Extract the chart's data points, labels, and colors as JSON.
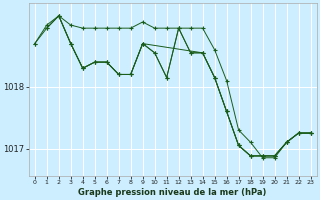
{
  "background_color": "#cceeff",
  "grid_color": "#ffffff",
  "line_color": "#1a5c1a",
  "title": "Graphe pression niveau de la mer (hPa)",
  "xlim": [
    -0.5,
    23.5
  ],
  "ylim": [
    1016.55,
    1019.35
  ],
  "yticks": [
    1017,
    1018
  ],
  "xticks": [
    0,
    1,
    2,
    3,
    4,
    5,
    6,
    7,
    8,
    9,
    10,
    11,
    12,
    13,
    14,
    15,
    16,
    17,
    18,
    19,
    20,
    21,
    22,
    23
  ],
  "series": [
    {
      "x": [
        0,
        1,
        2,
        3,
        4,
        5,
        6,
        7,
        8,
        9,
        10,
        11,
        12,
        13,
        14,
        15,
        16,
        17,
        18,
        19,
        20,
        21,
        22,
        23
      ],
      "y": [
        1018.7,
        1019.0,
        1019.15,
        1019.0,
        1018.95,
        1018.95,
        1018.95,
        1018.95,
        1018.95,
        1019.05,
        1018.95,
        1018.95,
        1018.95,
        1018.95,
        1018.95,
        1018.6,
        1018.1,
        1017.3,
        1017.1,
        1016.85,
        1016.85,
        1017.1,
        1017.25,
        1017.25
      ]
    },
    {
      "x": [
        0,
        1,
        2,
        3,
        4,
        5,
        6,
        7,
        8,
        9,
        10,
        11,
        12,
        13,
        14,
        15,
        16,
        17,
        18,
        19,
        20,
        21,
        22,
        23
      ],
      "y": [
        1018.7,
        1018.95,
        1019.15,
        1018.7,
        1018.3,
        1018.4,
        1018.4,
        1018.2,
        1018.2,
        1018.7,
        1018.55,
        1018.15,
        1018.95,
        1018.55,
        1018.55,
        1018.15,
        1017.6,
        1017.05,
        1016.88,
        1016.88,
        1016.88,
        1017.1,
        1017.25,
        1017.25
      ]
    },
    {
      "x": [
        1,
        2,
        3,
        4,
        5,
        6,
        7,
        8,
        9,
        14,
        15,
        16,
        17,
        18,
        19,
        20,
        21,
        22,
        23
      ],
      "y": [
        1018.95,
        1019.15,
        1018.7,
        1018.3,
        1018.4,
        1018.4,
        1018.2,
        1018.2,
        1018.7,
        1018.55,
        1018.15,
        1017.6,
        1017.05,
        1016.88,
        1016.88,
        1016.88,
        1017.1,
        1017.25,
        1017.25
      ]
    },
    {
      "x": [
        2,
        3,
        4,
        5,
        6,
        7,
        8,
        9,
        10,
        11,
        12,
        13,
        14,
        15,
        16,
        17,
        18,
        19,
        20,
        21,
        22,
        23
      ],
      "y": [
        1019.15,
        1018.7,
        1018.3,
        1018.4,
        1018.4,
        1018.2,
        1018.2,
        1018.7,
        1018.55,
        1018.15,
        1018.95,
        1018.55,
        1018.55,
        1018.15,
        1017.6,
        1017.05,
        1016.88,
        1016.88,
        1016.88,
        1017.1,
        1017.25,
        1017.25
      ]
    }
  ]
}
